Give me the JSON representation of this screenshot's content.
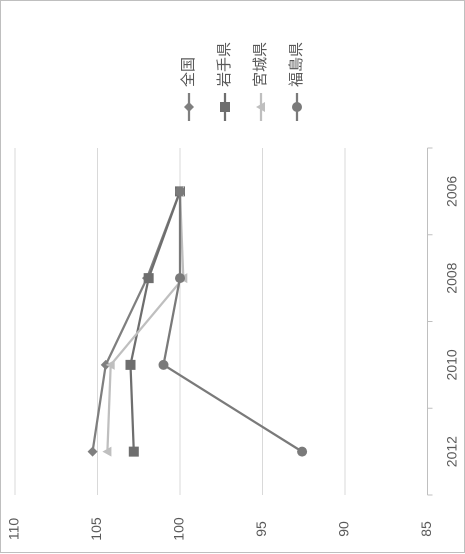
{
  "chart_data": {
    "type": "line",
    "orientation": "rotated-90-clockwise",
    "title": "",
    "xlabel": "",
    "ylabel": "",
    "x": [
      2006,
      2008,
      2010,
      2012
    ],
    "x_ticks": [
      "2006",
      "2008",
      "2010",
      "2012"
    ],
    "xlim": [
      2005,
      2013
    ],
    "y_ticks": [
      "85",
      "90",
      "95",
      "100",
      "105",
      "110"
    ],
    "ylim": [
      85,
      110
    ],
    "grid": true,
    "legend_position": "top",
    "series": [
      {
        "name": "全国",
        "values": [
          100,
          102,
          104.5,
          105.3
        ],
        "color": "#7f7f7f",
        "marker": "diamond"
      },
      {
        "name": "岩手県",
        "values": [
          100,
          101.9,
          103,
          102.8
        ],
        "color": "#6e6e6e",
        "marker": "square"
      },
      {
        "name": "宮城県",
        "values": [
          100,
          99.8,
          104.2,
          104.4
        ],
        "color": "#bfbfbf",
        "marker": "triangle"
      },
      {
        "name": "福島県",
        "values": [
          100,
          100,
          101,
          92.6
        ],
        "color": "#7a7a7a",
        "marker": "circle"
      }
    ]
  }
}
